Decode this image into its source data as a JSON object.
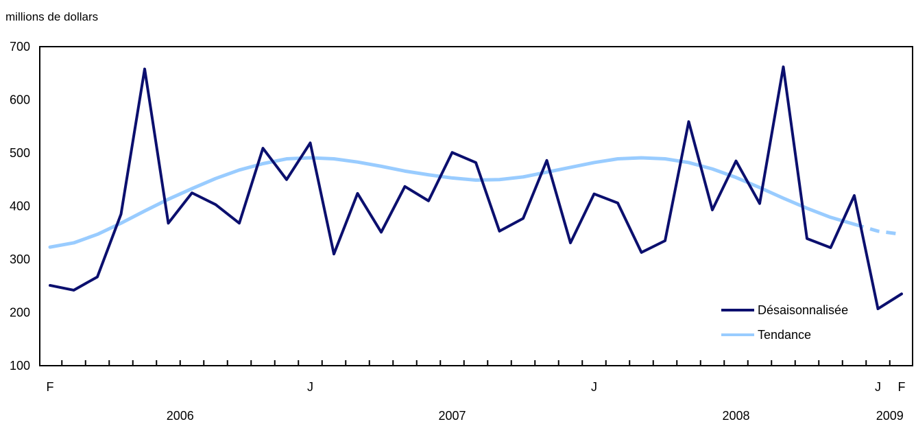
{
  "chart_data": {
    "type": "line",
    "unit_label": "millions de dollars",
    "ylim": [
      100,
      700
    ],
    "yticks": [
      100,
      200,
      300,
      400,
      500,
      600,
      700
    ],
    "month_tick_labels": [
      {
        "index": 0,
        "label": "F"
      },
      {
        "index": 11,
        "label": "J"
      },
      {
        "index": 23,
        "label": "J"
      },
      {
        "index": 35,
        "label": "J"
      },
      {
        "index": 36,
        "label": "F"
      }
    ],
    "year_labels": [
      {
        "center": 5.5,
        "label": "2006"
      },
      {
        "center": 17,
        "label": "2007"
      },
      {
        "center": 29,
        "label": "2008"
      },
      {
        "center": 35.5,
        "label": "2009"
      }
    ],
    "x": [
      "2006-02",
      "2006-03",
      "2006-04",
      "2006-05",
      "2006-06",
      "2006-07",
      "2006-08",
      "2006-09",
      "2006-10",
      "2006-11",
      "2006-12",
      "2007-01",
      "2007-02",
      "2007-03",
      "2007-04",
      "2007-05",
      "2007-06",
      "2007-07",
      "2007-08",
      "2007-09",
      "2007-10",
      "2007-11",
      "2007-12",
      "2008-01",
      "2008-02",
      "2008-03",
      "2008-04",
      "2008-05",
      "2008-06",
      "2008-07",
      "2008-08",
      "2008-09",
      "2008-10",
      "2008-11",
      "2008-12",
      "2009-01",
      "2009-02"
    ],
    "series": [
      {
        "name": "Désaisonnalisée",
        "color": "#0b0f6e",
        "values": [
          251,
          242,
          267,
          385,
          658,
          368,
          425,
          403,
          368,
          509,
          450,
          519,
          310,
          424,
          351,
          437,
          410,
          501,
          482,
          353,
          377,
          486,
          331,
          423,
          406,
          313,
          335,
          559,
          393,
          485,
          405,
          662,
          339,
          322,
          420,
          207,
          235
        ]
      },
      {
        "name": "Tendance",
        "color": "#99ccff",
        "dashed_last_segments": 2,
        "values": [
          323,
          331,
          347,
          368,
          391,
          413,
          433,
          452,
          468,
          480,
          489,
          491,
          489,
          483,
          475,
          466,
          459,
          453,
          449,
          450,
          455,
          464,
          473,
          482,
          489,
          491,
          489,
          482,
          470,
          454,
          435,
          415,
          396,
          379,
          366,
          353,
          347
        ]
      }
    ],
    "legend_position": "bottom-right",
    "grid": false
  }
}
